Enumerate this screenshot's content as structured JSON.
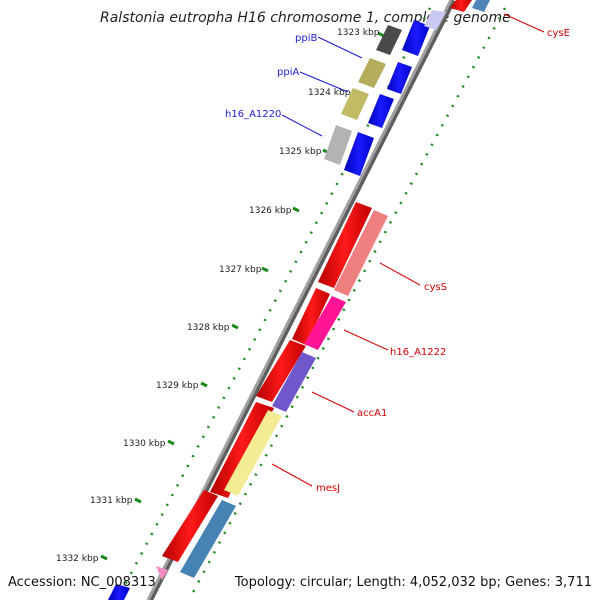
{
  "title": "Ralstonia eutropha H16 chromosome 1, complete genome",
  "footer": {
    "accession": "Accession: NC_008313",
    "stats": "Topology: circular; Length: 4,052,032 bp; Genes: 3,711"
  },
  "ticks": [
    "1323 kbp",
    "1324 kbp",
    "1325 kbp",
    "1326 kbp",
    "1327 kbp",
    "1328 kbp",
    "1329 kbp",
    "1330 kbp",
    "1331 kbp",
    "1332 kbp"
  ],
  "gene_labels": {
    "left": [
      "ppiB",
      "ppiA",
      "h16_A1220"
    ],
    "right": [
      "cysE",
      "cysS",
      "h16_A1222",
      "accA1",
      "mesJ"
    ]
  },
  "colors": {
    "left_label": "#1c1cd6",
    "right_label": "#d40000",
    "cds_red": "#ff0000",
    "cds_blue": "#0000ff",
    "ruler": "#808080",
    "dots": "#1a8a1a"
  }
}
